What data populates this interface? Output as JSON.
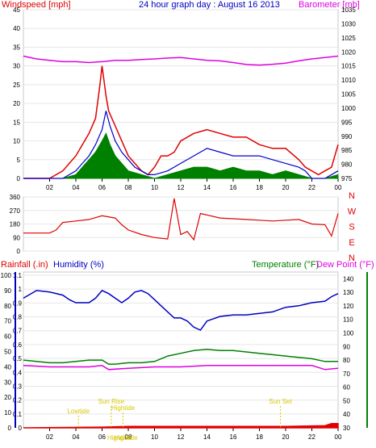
{
  "header": {
    "left_title": "Windspeed [mph]",
    "center_title": "24 hour graph day : August 16 2013",
    "right_title": "Barometer [mb]"
  },
  "colors": {
    "wind": "#e00000",
    "avg_wind": "#0000c8",
    "gust_fill": "#008000",
    "barometer": "#e000e0",
    "humidity": "#0000c0",
    "temperature": "#008000",
    "dew_point": "#e000e0",
    "rainfall": "#e00000",
    "annotation": "#d8c800",
    "frame": "#c8c8c8"
  },
  "chart_data": [
    {
      "type": "line",
      "name": "wind_barometer",
      "xlabel": "",
      "x_ticks": [
        "02",
        "04",
        "06",
        "08",
        "10",
        "12",
        "14",
        "16",
        "18",
        "20",
        "22",
        "00"
      ],
      "x_range": [
        0,
        24
      ],
      "left_axis": {
        "title": "Windspeed [mph]",
        "range": [
          0,
          45
        ],
        "ticks": [
          "0",
          "5",
          "10",
          "15",
          "20",
          "25",
          "30",
          "35",
          "40",
          "45"
        ]
      },
      "right_axis": {
        "title": "Barometer [mb]",
        "range": [
          975,
          1035
        ],
        "ticks": [
          "975",
          "980",
          "985",
          "990",
          "995",
          "1000",
          "1005",
          "1010",
          "1015",
          "1020",
          "1025",
          "1030",
          "1035"
        ]
      },
      "series": [
        {
          "key": "wind",
          "x": [
            0,
            2,
            3,
            3.5,
            4,
            4.5,
            5,
            5.5,
            5.8,
            6,
            6.3,
            6.5,
            7,
            7.5,
            8,
            8.5,
            9,
            9.5,
            10,
            10.5,
            11,
            11.5,
            12,
            13,
            14,
            15,
            16,
            17,
            18,
            19,
            20,
            21,
            21.5,
            22,
            22.5,
            23,
            23.5,
            24
          ],
          "y": [
            0,
            0,
            2,
            4,
            6,
            9,
            12,
            16,
            24,
            30,
            22,
            18,
            14,
            10,
            6,
            4,
            2,
            1,
            3,
            6,
            6,
            7,
            10,
            12,
            13,
            12,
            11,
            11,
            9,
            8,
            8,
            5,
            3,
            2,
            1,
            2,
            3,
            9
          ]
        },
        {
          "key": "avg_wind",
          "x": [
            0,
            2,
            3,
            4,
            4.5,
            5,
            5.5,
            6,
            6.3,
            6.6,
            7,
            7.5,
            8,
            8.5,
            9,
            9.5,
            10,
            11,
            12,
            13,
            14,
            15,
            16,
            17,
            18,
            19,
            20,
            21,
            21.5,
            22,
            23,
            24
          ],
          "y": [
            0,
            0,
            0,
            2,
            4,
            6,
            9,
            13,
            18,
            14,
            10,
            7,
            5,
            3,
            2,
            1,
            1,
            2,
            4,
            6,
            8,
            7,
            6,
            6,
            6,
            5,
            4,
            3,
            2,
            0,
            0,
            2
          ]
        },
        {
          "key": "gust_fill",
          "x": [
            0,
            2,
            3,
            4,
            4.5,
            5,
            5.5,
            6,
            6.3,
            6.6,
            7,
            7.5,
            8,
            9,
            10,
            11,
            12,
            13,
            14,
            15,
            16,
            17,
            18,
            19,
            20,
            21,
            22,
            23,
            24
          ],
          "y": [
            0,
            0,
            0,
            1,
            3,
            5,
            7,
            10,
            12,
            9,
            6,
            4,
            2,
            1,
            0,
            1,
            2,
            3,
            3,
            2,
            3,
            2,
            2,
            1,
            2,
            1,
            0,
            0,
            1
          ]
        },
        {
          "key": "barometer",
          "x": [
            0,
            1,
            2,
            3,
            4,
            5,
            6,
            7,
            8,
            9,
            10,
            11,
            12,
            13,
            14,
            15,
            16,
            17,
            18,
            19,
            20,
            21,
            22,
            23,
            24
          ],
          "y": [
            1018.5,
            1017.5,
            1017,
            1016.5,
            1016.5,
            1016.2,
            1016.5,
            1017,
            1017,
            1017.3,
            1017.5,
            1017.8,
            1018,
            1017.5,
            1017,
            1016.8,
            1016.2,
            1015.5,
            1015.3,
            1015.6,
            1016,
            1016.8,
            1017.5,
            1018,
            1018.5
          ]
        }
      ]
    },
    {
      "type": "line",
      "name": "wind_direction",
      "x_range": [
        0,
        24
      ],
      "y_range": [
        0,
        360
      ],
      "left_ticks": [
        "0",
        "90",
        "180",
        "270",
        "360"
      ],
      "right_labels": [
        "N",
        "W",
        "S",
        "E",
        "N"
      ],
      "series": [
        {
          "key": "direction",
          "x": [
            0,
            2,
            2.5,
            3,
            4,
            5,
            6,
            7,
            7.5,
            8,
            9,
            10,
            11,
            11.5,
            12,
            12.5,
            13,
            13.5,
            14,
            15,
            16,
            17,
            18,
            19,
            20,
            21,
            22,
            23,
            23.5,
            24
          ],
          "y": [
            120,
            120,
            140,
            190,
            200,
            210,
            235,
            220,
            175,
            140,
            110,
            90,
            80,
            350,
            110,
            130,
            75,
            250,
            240,
            220,
            215,
            210,
            205,
            200,
            205,
            210,
            180,
            175,
            100,
            250
          ]
        }
      ]
    },
    {
      "type": "line",
      "name": "humidity_temperature_rain",
      "x_range": [
        0,
        24
      ],
      "axis_titles": {
        "rainfall": "Rainfall (.in)",
        "humidity": "Humidity (%)",
        "temperature": "Temperature (°F)",
        "dew_point": "Dew Point (°F)"
      },
      "rain_axis": {
        "range": [
          0,
          1.1
        ],
        "ticks": [
          "0",
          "0.1",
          "0.2",
          "0.3",
          "0.4",
          "0.5",
          "0.6",
          "0.7",
          "0.8",
          "0.9",
          "1",
          "1.1"
        ]
      },
      "humidity_axis": {
        "range": [
          0,
          100
        ],
        "ticks": [
          "0",
          "10",
          "20",
          "30",
          "40",
          "50",
          "60",
          "70",
          "80",
          "90",
          "100"
        ]
      },
      "temperature_axis": {
        "range": [
          30,
          145
        ],
        "ticks": [
          "30",
          "40",
          "50",
          "60",
          "70",
          "80",
          "90",
          "100",
          "110",
          "120",
          "130",
          "140"
        ]
      },
      "series": [
        {
          "key": "humidity",
          "x": [
            0,
            1,
            2,
            3,
            3.5,
            4,
            5,
            5.5,
            6,
            6.5,
            7,
            7.5,
            8,
            8.5,
            9,
            9.5,
            10,
            10.5,
            11,
            11.5,
            12,
            12.5,
            13,
            13.5,
            14,
            15,
            16,
            17,
            18,
            19,
            20,
            21,
            22,
            23,
            23.5,
            24
          ],
          "y": [
            85,
            90,
            89,
            87,
            84,
            82,
            82,
            85,
            90,
            88,
            85,
            82,
            85,
            89,
            90,
            88,
            84,
            80,
            76,
            72,
            72,
            70,
            66,
            64,
            70,
            73,
            74,
            74,
            75,
            76,
            79,
            80,
            82,
            83,
            86,
            88
          ]
        },
        {
          "key": "temperature",
          "x": [
            0,
            1,
            2,
            3,
            4,
            5,
            6,
            6.5,
            7,
            8,
            9,
            10,
            11,
            12,
            13,
            14,
            15,
            16,
            17,
            18,
            19,
            20,
            21,
            22,
            23,
            24
          ],
          "y": [
            80,
            79,
            78,
            78,
            79,
            80,
            80,
            77,
            77,
            78,
            78,
            79,
            83,
            85,
            87,
            88,
            87,
            87,
            86,
            85,
            84,
            83,
            82,
            81,
            79,
            79
          ]
        },
        {
          "key": "dew_point",
          "x": [
            0,
            2,
            4,
            5,
            6,
            6.5,
            8,
            10,
            12,
            14,
            16,
            18,
            20,
            22,
            23,
            24
          ],
          "y": [
            76,
            75,
            75,
            75,
            76,
            73,
            74,
            75,
            75,
            76,
            76,
            76,
            76,
            76,
            73,
            74
          ]
        },
        {
          "key": "rainfall",
          "x": [
            0,
            6,
            8,
            12,
            16,
            20,
            23,
            23.5,
            24
          ],
          "y": [
            0,
            0.005,
            0.01,
            0.01,
            0.01,
            0.01,
            0.015,
            0.03,
            0.03
          ]
        }
      ],
      "annotations": [
        {
          "text": "Lowtide",
          "x": 4.2
        },
        {
          "text": "Sun Rise",
          "x": 6.7
        },
        {
          "text": "Hightide",
          "x": 7.6
        },
        {
          "text": "Sun Set",
          "x": 19.6
        },
        {
          "text": "Hightide",
          "x": 7.3
        },
        {
          "text": "Hightide",
          "x": 7.8
        }
      ],
      "x_ticks": [
        "02",
        "04",
        "06",
        "08",
        "10",
        "12",
        "14",
        "16",
        "18",
        "20",
        "22",
        "00"
      ]
    }
  ],
  "panel3_header": {
    "rainfall_label": "Rainfall (.in)",
    "humidity_label": "Humidity (%)",
    "temperature_label": "Temperature (°F)",
    "dewpoint_label": "Dew Point (°F)"
  }
}
